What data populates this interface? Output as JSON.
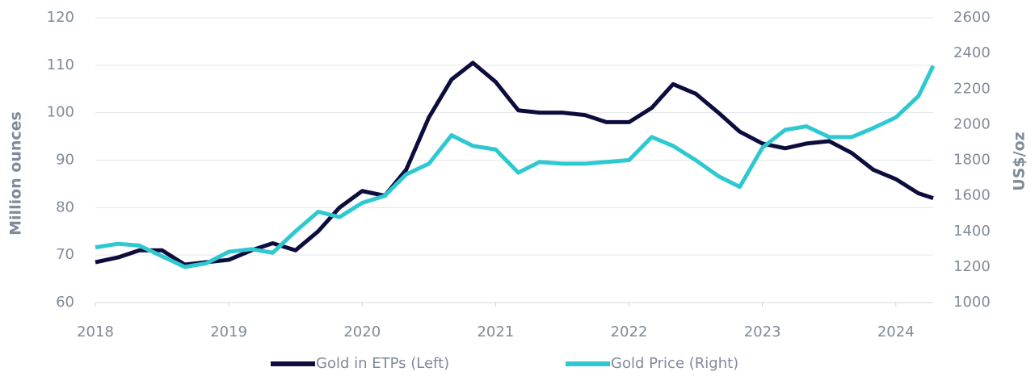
{
  "chart_data": {
    "type": "line",
    "x": [
      2018,
      2018.17,
      2018.33,
      2018.5,
      2018.67,
      2018.83,
      2019,
      2019.17,
      2019.33,
      2019.5,
      2019.67,
      2019.83,
      2020,
      2020.17,
      2020.33,
      2020.5,
      2020.67,
      2020.83,
      2021,
      2021.17,
      2021.33,
      2021.5,
      2021.67,
      2021.83,
      2022,
      2022.17,
      2022.33,
      2022.5,
      2022.67,
      2022.83,
      2023,
      2023.17,
      2023.33,
      2023.5,
      2023.67,
      2023.83,
      2024,
      2024.17,
      2024.28
    ],
    "series": [
      {
        "name": "Gold in ETPs (Left)",
        "color": "#0d0d3d",
        "axis": "y",
        "values": [
          68.5,
          69.5,
          71,
          71,
          68,
          68.5,
          69,
          71,
          72.5,
          71,
          75,
          80,
          83.5,
          82.5,
          88,
          99,
          107,
          110.5,
          106.5,
          100.5,
          100,
          100,
          99.5,
          98,
          98,
          101,
          106,
          104,
          100,
          96,
          93.5,
          92.5,
          93.5,
          94,
          91.5,
          88,
          86,
          83,
          82
        ]
      },
      {
        "name": "Gold Price (Right)",
        "color": "#2ec9d0",
        "axis": "y2",
        "values": [
          1310,
          1330,
          1320,
          1260,
          1200,
          1220,
          1285,
          1300,
          1280,
          1400,
          1510,
          1480,
          1560,
          1600,
          1720,
          1780,
          1940,
          1880,
          1860,
          1730,
          1790,
          1780,
          1780,
          1790,
          1800,
          1930,
          1880,
          1800,
          1710,
          1650,
          1870,
          1970,
          1990,
          1930,
          1930,
          1980,
          2040,
          2160,
          2330
        ]
      }
    ],
    "xlim": [
      2018,
      2024.28
    ],
    "xticks": [
      2018,
      2019,
      2020,
      2021,
      2022,
      2023,
      2024
    ],
    "ylim": [
      60,
      120
    ],
    "yticks": [
      60,
      70,
      80,
      90,
      100,
      110,
      120
    ],
    "y2lim": [
      1000,
      2600
    ],
    "y2ticks": [
      1000,
      1200,
      1400,
      1600,
      1800,
      2000,
      2200,
      2400,
      2600
    ],
    "ylabel": "Million ounces",
    "y2label": "US$/oz",
    "grid": true,
    "legend": "bottom"
  }
}
